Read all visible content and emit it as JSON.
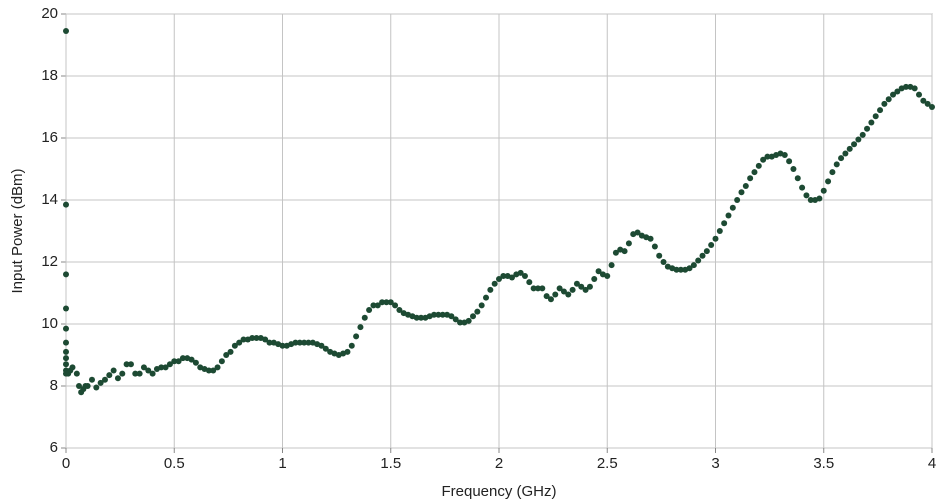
{
  "chart_data": {
    "type": "scatter",
    "x_label": "Frequency (GHz)",
    "y_label": "Input Power (dBm)",
    "xlim": [
      0,
      4
    ],
    "ylim": [
      6,
      20
    ],
    "xticks": [
      0,
      0.5,
      1,
      1.5,
      2,
      2.5,
      3,
      3.5,
      4
    ],
    "yticks": [
      6,
      8,
      10,
      12,
      14,
      16,
      18,
      20
    ],
    "grid": true,
    "color": "#1d4a33",
    "x": [
      0,
      0,
      0,
      0,
      0,
      0,
      0,
      0,
      0,
      0,
      0,
      0.01,
      0.02,
      0.03,
      0.05,
      0.06,
      0.07,
      0.08,
      0.09,
      0.1,
      0.12,
      0.14,
      0.16,
      0.18,
      0.2,
      0.22,
      0.24,
      0.26,
      0.28,
      0.3,
      0.32,
      0.34,
      0.36,
      0.38,
      0.4,
      0.42,
      0.44,
      0.46,
      0.48,
      0.5,
      0.52,
      0.54,
      0.56,
      0.58,
      0.6,
      0.62,
      0.64,
      0.66,
      0.68,
      0.7,
      0.72,
      0.74,
      0.76,
      0.78,
      0.8,
      0.82,
      0.84,
      0.86,
      0.88,
      0.9,
      0.92,
      0.94,
      0.96,
      0.98,
      1.0,
      1.02,
      1.04,
      1.06,
      1.08,
      1.1,
      1.12,
      1.14,
      1.16,
      1.18,
      1.2,
      1.22,
      1.24,
      1.26,
      1.28,
      1.3,
      1.32,
      1.34,
      1.36,
      1.38,
      1.4,
      1.42,
      1.44,
      1.46,
      1.48,
      1.5,
      1.52,
      1.54,
      1.56,
      1.58,
      1.6,
      1.62,
      1.64,
      1.66,
      1.68,
      1.7,
      1.72,
      1.74,
      1.76,
      1.78,
      1.8,
      1.82,
      1.84,
      1.86,
      1.88,
      1.9,
      1.92,
      1.94,
      1.96,
      1.98,
      2.0,
      2.02,
      2.04,
      2.06,
      2.08,
      2.1,
      2.12,
      2.14,
      2.16,
      2.18,
      2.2,
      2.22,
      2.24,
      2.26,
      2.28,
      2.3,
      2.32,
      2.34,
      2.36,
      2.38,
      2.4,
      2.42,
      2.44,
      2.46,
      2.48,
      2.5,
      2.52,
      2.54,
      2.56,
      2.58,
      2.6,
      2.62,
      2.64,
      2.66,
      2.68,
      2.7,
      2.72,
      2.74,
      2.76,
      2.78,
      2.8,
      2.82,
      2.84,
      2.86,
      2.88,
      2.9,
      2.92,
      2.94,
      2.96,
      2.98,
      3.0,
      3.02,
      3.04,
      3.06,
      3.08,
      3.1,
      3.12,
      3.14,
      3.16,
      3.18,
      3.2,
      3.22,
      3.24,
      3.26,
      3.28,
      3.3,
      3.32,
      3.34,
      3.36,
      3.38,
      3.4,
      3.42,
      3.44,
      3.46,
      3.48,
      3.5,
      3.52,
      3.54,
      3.56,
      3.58,
      3.6,
      3.62,
      3.64,
      3.66,
      3.68,
      3.7,
      3.72,
      3.74,
      3.76,
      3.78,
      3.8,
      3.82,
      3.84,
      3.86,
      3.88,
      3.9,
      3.92,
      3.94,
      3.96,
      3.98,
      4.0
    ],
    "values": [
      19.45,
      13.85,
      11.6,
      10.5,
      9.85,
      9.4,
      9.1,
      8.9,
      8.7,
      8.5,
      8.4,
      8.4,
      8.5,
      8.6,
      8.4,
      8.0,
      7.8,
      7.9,
      8.0,
      8.0,
      8.2,
      7.95,
      8.1,
      8.2,
      8.35,
      8.5,
      8.25,
      8.4,
      8.7,
      8.7,
      8.4,
      8.4,
      8.6,
      8.5,
      8.4,
      8.55,
      8.6,
      8.6,
      8.7,
      8.8,
      8.8,
      8.9,
      8.9,
      8.85,
      8.75,
      8.6,
      8.55,
      8.5,
      8.5,
      8.6,
      8.8,
      9.0,
      9.1,
      9.3,
      9.4,
      9.5,
      9.5,
      9.55,
      9.55,
      9.55,
      9.5,
      9.4,
      9.4,
      9.35,
      9.3,
      9.3,
      9.35,
      9.4,
      9.4,
      9.4,
      9.4,
      9.4,
      9.35,
      9.3,
      9.2,
      9.1,
      9.05,
      9.0,
      9.05,
      9.1,
      9.3,
      9.6,
      9.9,
      10.2,
      10.45,
      10.6,
      10.6,
      10.7,
      10.7,
      10.7,
      10.6,
      10.45,
      10.35,
      10.3,
      10.25,
      10.2,
      10.2,
      10.2,
      10.25,
      10.3,
      10.3,
      10.3,
      10.3,
      10.25,
      10.15,
      10.05,
      10.05,
      10.1,
      10.25,
      10.4,
      10.6,
      10.85,
      11.1,
      11.3,
      11.45,
      11.55,
      11.55,
      11.5,
      11.6,
      11.65,
      11.55,
      11.35,
      11.15,
      11.15,
      11.15,
      10.9,
      10.8,
      10.95,
      11.15,
      11.05,
      10.95,
      11.1,
      11.3,
      11.2,
      11.1,
      11.2,
      11.45,
      11.7,
      11.6,
      11.55,
      11.9,
      12.3,
      12.4,
      12.35,
      12.6,
      12.9,
      12.95,
      12.85,
      12.8,
      12.75,
      12.5,
      12.2,
      12.0,
      11.85,
      11.8,
      11.75,
      11.75,
      11.75,
      11.8,
      11.9,
      12.05,
      12.2,
      12.35,
      12.55,
      12.75,
      13.0,
      13.25,
      13.5,
      13.75,
      14.0,
      14.25,
      14.45,
      14.7,
      14.9,
      15.1,
      15.3,
      15.4,
      15.4,
      15.45,
      15.5,
      15.45,
      15.25,
      15.0,
      14.7,
      14.4,
      14.15,
      14.0,
      14.0,
      14.05,
      14.3,
      14.6,
      14.9,
      15.15,
      15.35,
      15.5,
      15.65,
      15.8,
      15.95,
      16.1,
      16.3,
      16.5,
      16.7,
      16.9,
      17.1,
      17.25,
      17.4,
      17.5,
      17.6,
      17.65,
      17.65,
      17.6,
      17.4,
      17.2,
      17.1,
      17.0
    ]
  }
}
